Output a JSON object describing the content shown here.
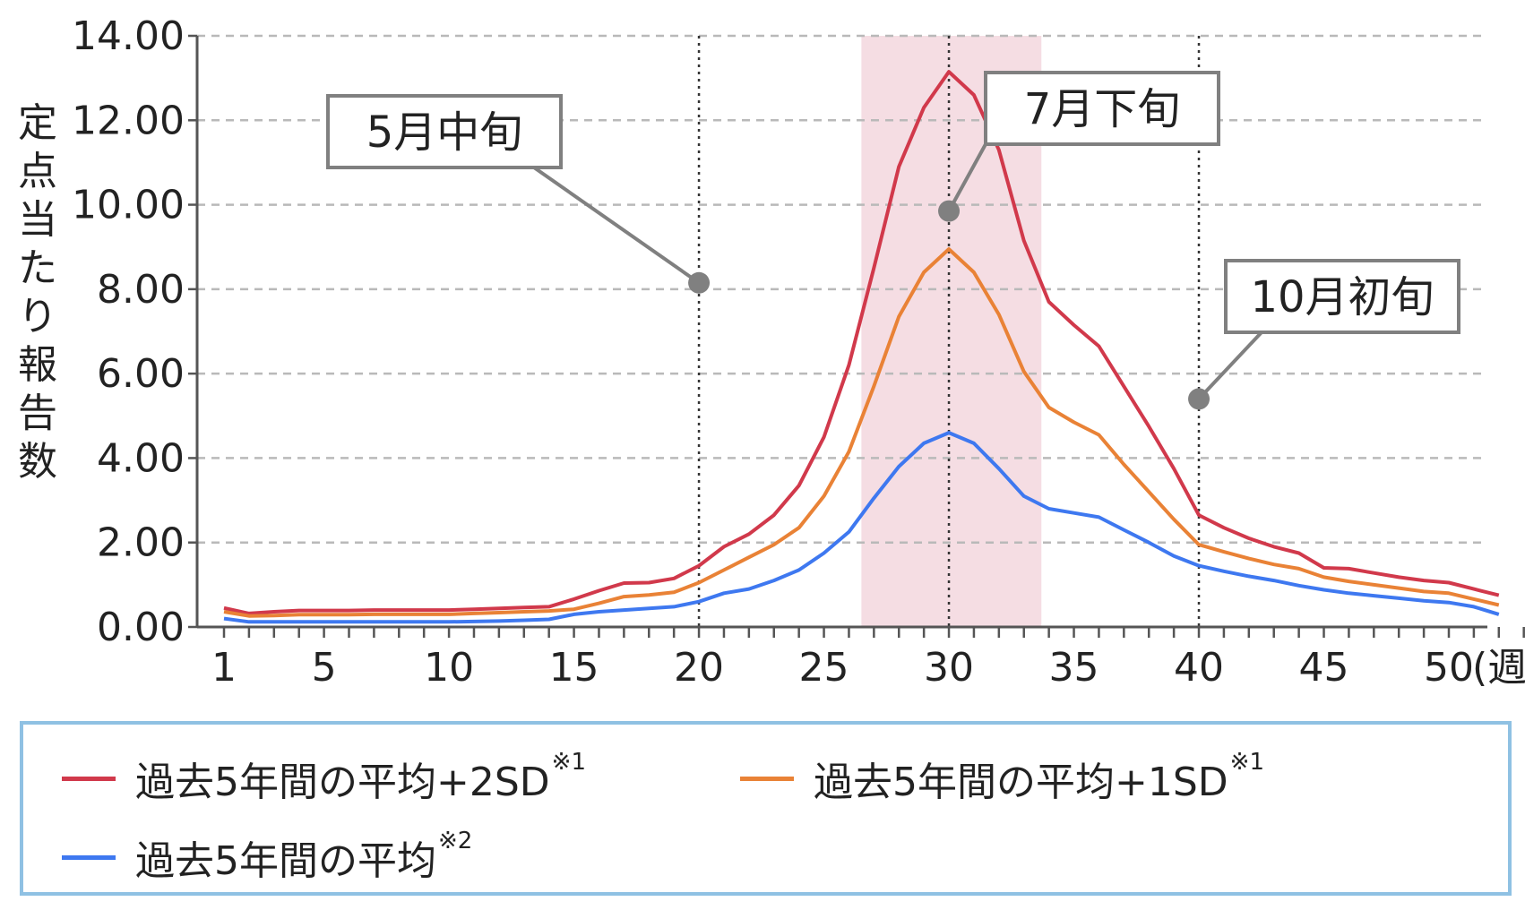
{
  "chart_data": {
    "type": "line",
    "ylabel": "定点当たり報告数",
    "x_unit_label": "(週)",
    "x": [
      1,
      2,
      3,
      4,
      5,
      6,
      7,
      8,
      9,
      10,
      11,
      12,
      13,
      14,
      15,
      16,
      17,
      18,
      19,
      20,
      21,
      22,
      23,
      24,
      25,
      26,
      27,
      28,
      29,
      30,
      31,
      32,
      33,
      34,
      35,
      36,
      37,
      38,
      39,
      40,
      41,
      42,
      43,
      44,
      45,
      46,
      47,
      48,
      49,
      50,
      51,
      52
    ],
    "xlim": [
      1,
      53
    ],
    "xticks": [
      1,
      5,
      10,
      15,
      20,
      25,
      30,
      35,
      40,
      45,
      50
    ],
    "ylim": [
      0,
      14
    ],
    "yticks": [
      0,
      2,
      4,
      6,
      8,
      10,
      12,
      14
    ],
    "ytick_labels": [
      "0.00",
      "2.00",
      "4.00",
      "6.00",
      "8.00",
      "10.00",
      "12.00",
      "14.00"
    ],
    "grid": "horizontal dashed",
    "highlight_band": {
      "x_from": 26.5,
      "x_to": 33.7,
      "color": "#f5dde3"
    },
    "series": [
      {
        "name": "過去5年間の平均+2SD",
        "note": "※1",
        "color": "#d1394b",
        "values": [
          0.45,
          0.32,
          0.36,
          0.39,
          0.39,
          0.39,
          0.4,
          0.4,
          0.4,
          0.4,
          0.42,
          0.44,
          0.46,
          0.48,
          0.66,
          0.86,
          1.04,
          1.05,
          1.15,
          1.45,
          1.9,
          2.2,
          2.65,
          3.35,
          4.5,
          6.2,
          8.5,
          10.9,
          12.3,
          13.15,
          12.6,
          11.3,
          9.15,
          7.7,
          7.15,
          6.65,
          5.7,
          4.75,
          3.75,
          2.65,
          2.35,
          2.1,
          1.9,
          1.75,
          1.4,
          1.38,
          1.28,
          1.18,
          1.1,
          1.05,
          0.9,
          0.75
        ]
      },
      {
        "name": "過去5年間の平均+1SD",
        "note": "※1",
        "color": "#e98236",
        "values": [
          0.36,
          0.26,
          0.27,
          0.29,
          0.29,
          0.29,
          0.3,
          0.3,
          0.3,
          0.3,
          0.32,
          0.34,
          0.36,
          0.38,
          0.42,
          0.56,
          0.72,
          0.76,
          0.82,
          1.05,
          1.35,
          1.65,
          1.95,
          2.35,
          3.1,
          4.15,
          5.7,
          7.35,
          8.4,
          8.95,
          8.4,
          7.4,
          6.05,
          5.2,
          4.85,
          4.55,
          3.85,
          3.2,
          2.55,
          1.95,
          1.78,
          1.62,
          1.48,
          1.38,
          1.18,
          1.08,
          1.0,
          0.92,
          0.84,
          0.8,
          0.66,
          0.52
        ]
      },
      {
        "name": "過去5年間の平均",
        "note": "※2",
        "color": "#3e78f0",
        "values": [
          0.2,
          0.12,
          0.12,
          0.12,
          0.12,
          0.12,
          0.12,
          0.12,
          0.12,
          0.12,
          0.13,
          0.14,
          0.16,
          0.18,
          0.3,
          0.36,
          0.4,
          0.44,
          0.48,
          0.6,
          0.8,
          0.9,
          1.1,
          1.35,
          1.75,
          2.25,
          3.05,
          3.8,
          4.35,
          4.6,
          4.35,
          3.75,
          3.1,
          2.8,
          2.7,
          2.6,
          2.3,
          2.0,
          1.68,
          1.45,
          1.32,
          1.2,
          1.1,
          0.98,
          0.88,
          0.8,
          0.74,
          0.68,
          0.62,
          0.58,
          0.48,
          0.3
        ]
      }
    ],
    "markers": [
      {
        "x": 20,
        "line_y": 8.15,
        "label": "5月中旬"
      },
      {
        "x": 30,
        "line_y": 9.85,
        "label": "7月下旬"
      },
      {
        "x": 40,
        "line_y": 5.4,
        "label": "10月初旬"
      }
    ]
  }
}
